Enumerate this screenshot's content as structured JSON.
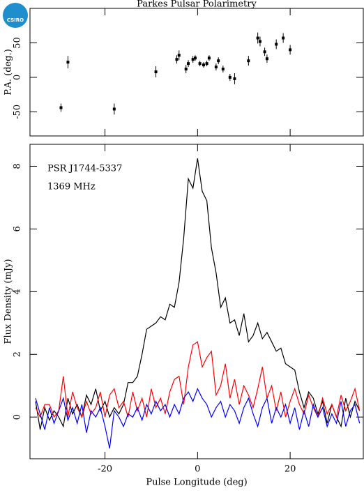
{
  "logo_text": "CSIRO",
  "chart_data": [
    {
      "type": "scatter",
      "title": "Parkes Pulsar Polarimetry",
      "ylabel": "P.A. (deg.)",
      "xlim": [
        -36.2,
        35.8
      ],
      "ylim": [
        -85,
        100
      ],
      "yticks": [
        -50,
        0,
        50
      ],
      "series": [
        {
          "color": "#000000",
          "x": [
            -29.5,
            -28,
            -18,
            -9,
            -4.5,
            -4,
            -2.5,
            -2,
            -1,
            -0.5,
            0.5,
            1.3,
            2,
            2.5,
            4,
            4.5,
            5.5,
            7,
            8,
            11,
            13,
            13.5,
            14.5,
            15,
            17,
            18.5,
            20
          ],
          "values": [
            -44,
            22,
            -46,
            8,
            26,
            32,
            12,
            20,
            26,
            28,
            20,
            18,
            20,
            28,
            15,
            24,
            12,
            0,
            -2,
            24,
            57,
            52,
            37,
            27,
            48,
            57,
            40
          ],
          "errors": [
            6,
            9,
            8,
            8,
            6,
            7,
            6,
            5,
            5,
            4,
            4,
            4,
            4,
            4,
            5,
            5,
            5,
            5,
            8,
            7,
            8,
            7,
            6,
            6,
            7,
            7,
            7
          ]
        }
      ]
    },
    {
      "type": "line",
      "xlabel": "Pulse Longitude (deg)",
      "ylabel": "Flux Density (mJy)",
      "annotations": [
        "PSR J1744-5337",
        "1369 MHz"
      ],
      "xlim": [
        -36.2,
        35.8
      ],
      "xticks": [
        -20,
        0,
        20
      ],
      "ylim": [
        -1.33,
        8.7
      ],
      "yticks": [
        0,
        2,
        4,
        6,
        8
      ],
      "x": [
        -35,
        -34,
        -33,
        -32,
        -31,
        -30,
        -29,
        -28,
        -27,
        -26,
        -25,
        -24,
        -23,
        -22,
        -21,
        -20,
        -19,
        -18,
        -17,
        -16,
        -15,
        -14,
        -13,
        -12,
        -11,
        -10,
        -9,
        -8,
        -7,
        -6,
        -5,
        -4,
        -3,
        -2,
        -1,
        0,
        1,
        2,
        3,
        4,
        5,
        6,
        7,
        8,
        9,
        10,
        11,
        12,
        13,
        14,
        15,
        16,
        17,
        18,
        19,
        20,
        21,
        22,
        23,
        24,
        25,
        26,
        27,
        28,
        29,
        30,
        31,
        32,
        33,
        34,
        35
      ],
      "series": [
        {
          "color": "#000000",
          "values": [
            0.5,
            -0.4,
            0.3,
            -0.1,
            0.2,
            0.0,
            -0.3,
            0.6,
            0.1,
            0.4,
            0.0,
            0.7,
            0.4,
            0.9,
            0.2,
            0.5,
            0.0,
            0.3,
            0.1,
            0.4,
            1.1,
            1.1,
            1.3,
            2.0,
            2.8,
            2.9,
            3.0,
            3.2,
            3.1,
            3.6,
            3.5,
            4.3,
            5.7,
            7.6,
            7.3,
            8.25,
            7.2,
            6.9,
            5.4,
            4.6,
            3.5,
            3.8,
            3.0,
            3.1,
            2.6,
            3.3,
            2.4,
            2.6,
            3.0,
            2.5,
            2.7,
            2.4,
            2.1,
            2.2,
            1.7,
            1.6,
            1.5,
            0.8,
            0.3,
            0.8,
            0.6,
            0.1,
            0.5,
            -0.2,
            0.4,
            0.0,
            -0.3,
            0.6,
            0.0,
            0.5,
            0.2
          ]
        },
        {
          "color": "#ff0000",
          "values": [
            0.3,
            0.0,
            0.4,
            0.4,
            0.0,
            0.2,
            1.3,
            0.0,
            0.8,
            0.3,
            0.0,
            0.5,
            0.1,
            0.3,
            0.8,
            0.0,
            0.7,
            0.9,
            0.3,
            0.5,
            0.0,
            0.8,
            0.2,
            0.6,
            0.0,
            0.9,
            0.3,
            0.6,
            0.1,
            0.8,
            1.2,
            1.3,
            0.4,
            1.6,
            2.3,
            2.4,
            1.6,
            1.9,
            2.1,
            0.7,
            1.0,
            1.7,
            0.6,
            1.2,
            0.4,
            1.0,
            0.7,
            0.3,
            0.9,
            1.6,
            0.6,
            1.0,
            0.2,
            0.8,
            0.0,
            0.5,
            0.9,
            0.4,
            0.1,
            0.7,
            0.3,
            0.0,
            0.6,
            0.1,
            0.4,
            0.0,
            0.7,
            0.2,
            0.5,
            0.9,
            0.2
          ]
        },
        {
          "color": "#0000ff",
          "values": [
            0.6,
            0.1,
            -0.4,
            0.3,
            -0.2,
            0.2,
            0.6,
            -0.1,
            0.3,
            -0.2,
            0.4,
            -0.5,
            0.2,
            0.0,
            0.3,
            -0.3,
            -1.0,
            0.2,
            0.0,
            -0.3,
            0.1,
            0.0,
            0.3,
            -0.1,
            0.4,
            0.1,
            0.5,
            0.2,
            0.4,
            0.0,
            0.4,
            0.1,
            0.6,
            0.8,
            0.5,
            0.9,
            0.6,
            0.4,
            0.0,
            0.3,
            0.5,
            0.0,
            0.4,
            0.2,
            -0.2,
            0.3,
            0.6,
            0.1,
            -0.3,
            0.3,
            0.6,
            -0.2,
            0.3,
            0.0,
            0.4,
            -0.2,
            0.3,
            -0.4,
            0.2,
            -0.3,
            0.4,
            0.0,
            0.3,
            -0.3,
            0.1,
            -0.2,
            0.5,
            -0.3,
            0.2,
            0.4,
            -0.2
          ]
        }
      ]
    }
  ]
}
